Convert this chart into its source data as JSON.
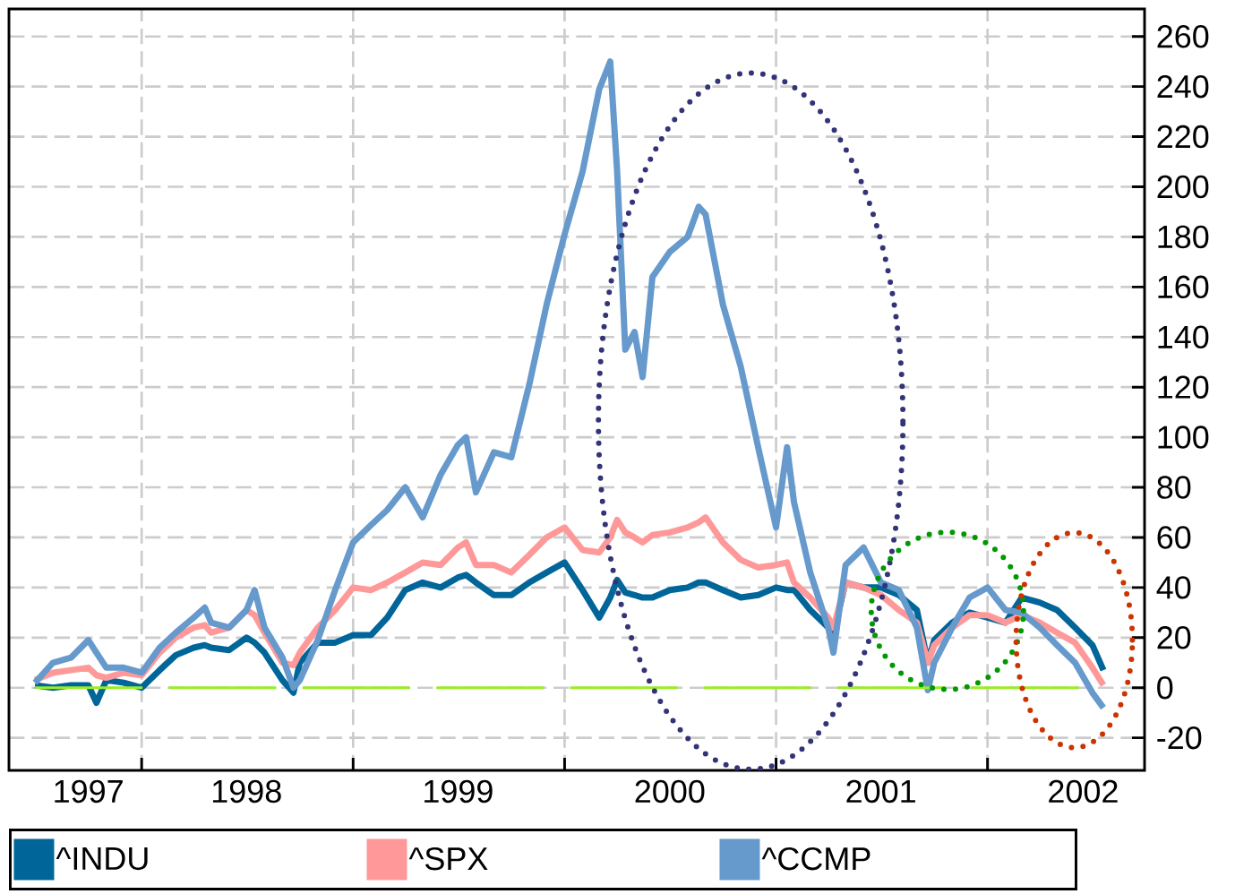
{
  "chart_data": {
    "type": "line",
    "x": [
      "1997-07-01",
      "1997-08-01",
      "1997-09-01",
      "1997-10-01",
      "1997-10-15",
      "1997-11-01",
      "1997-12-01",
      "1998-01-01",
      "1998-02-01",
      "1998-03-01",
      "1998-04-01",
      "1998-04-20",
      "1998-05-01",
      "1998-06-01",
      "1998-07-01",
      "1998-07-15",
      "1998-08-01",
      "1998-09-01",
      "1998-09-20",
      "1998-10-01",
      "1998-11-01",
      "1998-12-01",
      "1999-01-01",
      "1999-02-01",
      "1999-03-01",
      "1999-04-01",
      "1999-05-01",
      "1999-06-01",
      "1999-07-01",
      "1999-07-15",
      "1999-08-01",
      "1999-09-01",
      "1999-10-01",
      "1999-11-01",
      "1999-12-01",
      "2000-01-01",
      "2000-02-01",
      "2000-03-01",
      "2000-03-20",
      "2000-04-01",
      "2000-04-15",
      "2000-05-01",
      "2000-05-15",
      "2000-06-01",
      "2000-07-01",
      "2000-08-01",
      "2000-08-20",
      "2000-09-01",
      "2000-10-01",
      "2000-11-01",
      "2000-12-01",
      "2001-01-01",
      "2001-01-20",
      "2001-02-01",
      "2001-03-01",
      "2001-04-01",
      "2001-04-10",
      "2001-05-01",
      "2001-06-01",
      "2001-07-01",
      "2001-08-01",
      "2001-09-01",
      "2001-09-20",
      "2001-10-01",
      "2001-11-01",
      "2001-12-01",
      "2002-01-01",
      "2002-02-01",
      "2002-03-01",
      "2002-04-01",
      "2002-05-01",
      "2002-06-01",
      "2002-07-01",
      "2002-07-20"
    ],
    "series": [
      {
        "name": "^INDU",
        "color": "#006699",
        "values": [
          1,
          0,
          1,
          1,
          -6,
          3,
          2,
          0,
          7,
          13,
          16,
          17,
          16,
          15,
          20,
          18,
          14,
          3,
          -2,
          10,
          18,
          18,
          21,
          21,
          28,
          39,
          42,
          40,
          44,
          45,
          42,
          37,
          37,
          42,
          46,
          50,
          39,
          28,
          36,
          43,
          38,
          37,
          36,
          36,
          39,
          40,
          42,
          42,
          39,
          36,
          37,
          40,
          39,
          39,
          31,
          24,
          22,
          42,
          40,
          40,
          37,
          31,
          10,
          19,
          26,
          30,
          28,
          26,
          36,
          34,
          31,
          24,
          17,
          7
        ]
      },
      {
        "name": "^SPX",
        "color": "#ff9999",
        "values": [
          3,
          6,
          7,
          8,
          5,
          4,
          6,
          5,
          14,
          20,
          24,
          25,
          22,
          24,
          31,
          29,
          22,
          10,
          9,
          14,
          24,
          31,
          40,
          39,
          42,
          46,
          50,
          49,
          56,
          58,
          49,
          49,
          46,
          53,
          60,
          64,
          55,
          54,
          60,
          67,
          62,
          60,
          58,
          61,
          62,
          64,
          66,
          68,
          58,
          51,
          48,
          49,
          50,
          42,
          36,
          28,
          24,
          42,
          40,
          37,
          31,
          26,
          10,
          17,
          24,
          29,
          29,
          26,
          29,
          26,
          22,
          18,
          8,
          1
        ]
      },
      {
        "name": "^CCMP",
        "color": "#6699cc",
        "values": [
          2,
          10,
          12,
          19,
          14,
          8,
          8,
          6,
          16,
          22,
          28,
          32,
          26,
          24,
          31,
          39,
          24,
          12,
          0,
          3,
          19,
          39,
          58,
          65,
          71,
          80,
          68,
          85,
          97,
          100,
          78,
          94,
          92,
          121,
          153,
          181,
          206,
          239,
          250,
          206,
          135,
          142,
          124,
          164,
          174,
          180,
          192,
          189,
          153,
          128,
          96,
          64,
          96,
          74,
          46,
          24,
          14,
          49,
          56,
          42,
          39,
          24,
          -1,
          10,
          24,
          36,
          40,
          31,
          30,
          24,
          17,
          10,
          -2,
          -8
        ]
      }
    ],
    "xlim": [
      "1997-05-17",
      "2002-09-29"
    ],
    "ylim": [
      -33,
      271
    ],
    "xticks": [
      {
        "value": "1997-10-01",
        "label": "1997"
      },
      {
        "value": "1998-01-01",
        "label": null
      },
      {
        "value": "1998-07-01",
        "label": "1998"
      },
      {
        "value": "1999-01-01",
        "label": null
      },
      {
        "value": "1999-07-01",
        "label": "1999"
      },
      {
        "value": "2000-01-01",
        "label": null
      },
      {
        "value": "2000-07-01",
        "label": "2000"
      },
      {
        "value": "2001-01-01",
        "label": null
      },
      {
        "value": "2001-07-01",
        "label": "2001"
      },
      {
        "value": "2002-01-01",
        "label": null
      },
      {
        "value": "2002-06-15",
        "label": "2002"
      }
    ],
    "yticks": [
      -20,
      0,
      20,
      40,
      60,
      80,
      100,
      120,
      140,
      160,
      180,
      200,
      220,
      240,
      260
    ],
    "ref_lines": [
      {
        "axis": "y",
        "value": 0,
        "color": "#99ee22",
        "line_style": "dashed"
      }
    ],
    "grid": true,
    "legend": "bottom"
  }
}
